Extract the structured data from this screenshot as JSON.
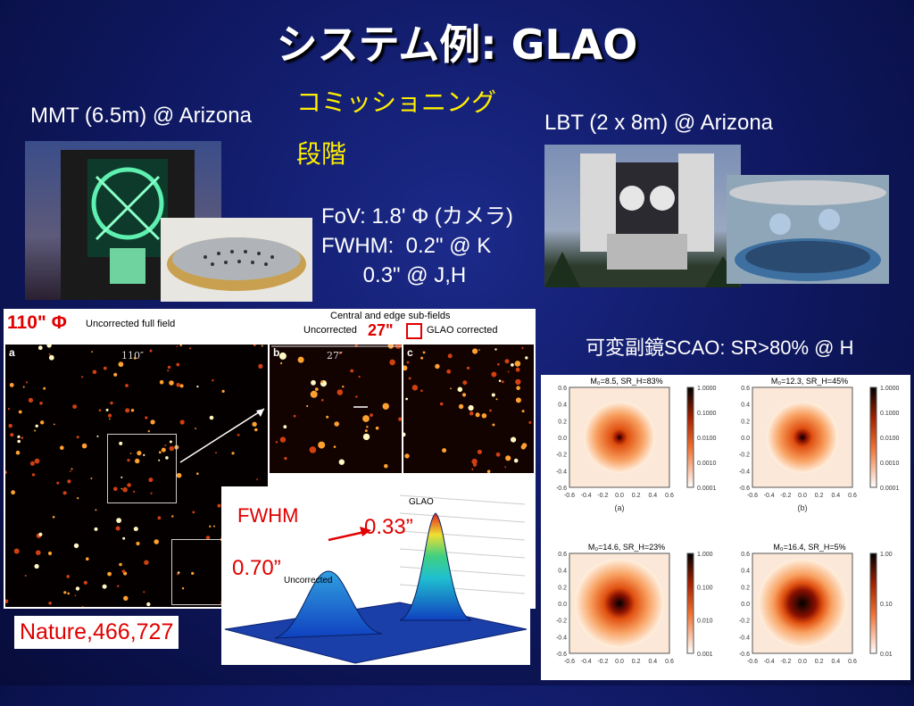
{
  "slide": {
    "title": "システム例: GLAO",
    "mmt_label": "MMT (6.5m) @ Arizona",
    "commissioning_line1": "コミッショニング",
    "commissioning_line2": "段階",
    "lbt_label": "LBT  (2 x 8m) @ Arizona",
    "spec_fov": "FoV: 1.8' Φ (カメラ)",
    "spec_fwhm1": "FWHM:  0.2\" @ K",
    "spec_fwhm2": "       0.3\" @ J,H",
    "scao_label": "可変副鏡SCAO: SR>80% @ H"
  },
  "starfield": {
    "field_size": "110\" Φ",
    "panel_a_label": "a",
    "panel_a_title": "Uncorrected full field",
    "panel_a_scale": "110″",
    "sub_header": "Central and edge sub-fields",
    "sub_uncorrected": "Uncorrected",
    "sub_size": "27\"",
    "sub_glao": "GLAO corrected",
    "panel_b_label": "b",
    "panel_b_scale": "27″",
    "panel_c_label": "c",
    "citation": "Nature,466,727"
  },
  "profile": {
    "fwhm_label": "FWHM",
    "glao_value": "0.33”",
    "uncorrected_value": "0.70”",
    "glao_tag": "GLAO",
    "uncorrected_tag": "Uncorrected"
  },
  "psf_panels": [
    {
      "title": "M₀=8.5, SR_H=83%",
      "caption": "(a)",
      "colorbar": [
        "1.0000",
        "0.1000",
        "0.0100",
        "0.0010",
        "0.0001"
      ]
    },
    {
      "title": "M₀=12.3, SR_H=45%",
      "caption": "(b)",
      "colorbar": [
        "1.0000",
        "0.1000",
        "0.0100",
        "0.0010",
        "0.0001"
      ]
    },
    {
      "title": "M₀=14.6, SR_H=23%",
      "caption": "",
      "colorbar": [
        "1.000",
        "0.100",
        "0.010",
        "0.001"
      ]
    },
    {
      "title": "M₀=16.4, SR_H=5%",
      "caption": "",
      "colorbar": [
        "1.00",
        "0.10",
        "0.01"
      ]
    }
  ],
  "psf_axis": {
    "ticks": [
      "-0.6",
      "-0.4",
      "-0.2",
      "0.0",
      "0.2",
      "0.4",
      "0.6"
    ],
    "yticks": [
      "0.6",
      "0.4",
      "0.2",
      "0.0",
      "-0.2",
      "-0.4",
      "-0.6"
    ]
  },
  "colors": {
    "accent_yellow": "#ffee00",
    "accent_red": "#e00000",
    "background": "#101a66"
  }
}
